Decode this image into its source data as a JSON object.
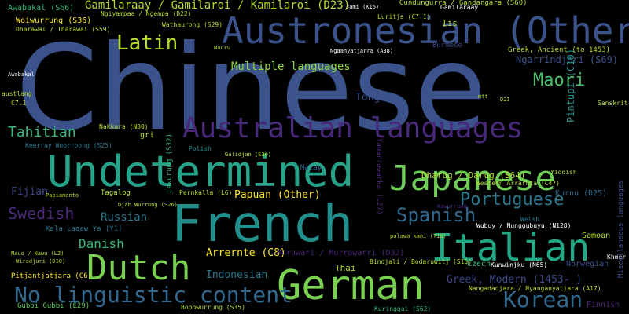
{
  "words": {
    "chinese": "Chinese",
    "austronesian": "Austronesian (Other)",
    "undetermined": "Undetermined",
    "french": "French",
    "german": "German",
    "dutch": "Dutch",
    "japanese": "Japanese",
    "italian": "Italian",
    "australian_languages": "Australian languages",
    "korean": "Korean",
    "no_linguistic_content": "No linguistic content",
    "spanish": "Spanish",
    "portuguese": "Portuguese",
    "latin": "Latin",
    "maori": "Maori",
    "tahitian": "Tahitian",
    "swedish": "Swedish",
    "danish": "Danish",
    "russian": "Russian",
    "fijian": "Fijian",
    "gamilaraay": "Gamilaraay / Gamilaroi / Kamilaroi (D23)",
    "multiple_languages": "Multiple languages",
    "tongan": "Tongan",
    "papuan": "Papuan (Other)",
    "arrernte": "Arrernte (C8)",
    "indonesian": "Indonesian",
    "greek_modern": "Greek, Modern (1453- )",
    "ngarrindjeri": "Ngarrindjeri (S69)",
    "pintupi": "Pintupi (C10)",
    "dharug": "Dharug / Darug (S64)",
    "kurnu": "Kurnu (D25)",
    "samoan": "Samoan",
    "norwegian": "Norwegian",
    "finnish": "Finnish",
    "thai": "Thai",
    "czech": "Czech",
    "kala_lagaw": "Kala Lagaw Ya (Y1)",
    "woiwurrung": "Woiwurrung (S36)",
    "awabakal": "Awabakal (S66)",
    "muruwari": "Muruwari / Murrawarri (D32)",
    "burmese": "Burmese",
    "greek_ancient": "Greek, Ancient (to 1453)",
    "sanskrit": "Sanskrit",
    "polish": "Polish",
    "malay": "Malay",
    "yiddish": "Yiddish",
    "welsh": "Welsh",
    "khmer": "Khmer",
    "iis": "Iis",
    "nauru": "Nauru",
    "pitjantjatjara": "Pitjantjatjara (C6)",
    "gubbi": "Gubbi Gubbi (E29)",
    "boonwurrung": "Boonwurrung (S35)",
    "kuringgai": "Kuringgai (S62)",
    "nangadadjara": "Nangadadjara / Nyanganyatjara (A17)",
    "luritja": "Luritja (C7.1)",
    "gundungurra": "Gundungurra / Gandangara (S60)",
    "ngiyampaa": "Ngiyampaa / Ngempa (D22)",
    "dharawal": "Dharawal / Tharawal (S59)",
    "wathaurong": "Wathaurong (S29)",
    "nakkara": "Nakkara (N80)",
    "gri": "gri",
    "gulidjan": "Gulidjan (S30)",
    "keerray": "Keerray Woorroong (S25)",
    "tagalog": "Tagalog",
    "papiamento": "Papiamento",
    "parnkalla": "Parnkalla (L6)",
    "djab": "Djab Wurrung (S26)",
    "bindjali": "Bindjali / Bodaruwitj (S15)",
    "palawa": "palawa kani (T16)",
    "kunwinjku": "Kunwinjku (N65)",
    "wubuy": "Wubuy / Nunggubuyu (N128)",
    "western_arrarnta": "Western Arrarnta (C47)",
    "nauo": "Nauo / Nawu (L2)",
    "wiradjuri": "Wiradjuri (D10)",
    "gamilaraay_short": "Gamilaraay",
    "ngaanyatjarra": "Ngaanyatjarra (A38)",
    "jami": "Jami (K16)",
    "austlang": "austlang",
    "c71": "C7.1",
    "mtt": "mtt",
    "d21": "D21",
    "lewurung": "Lewurung (S32)",
    "misc": "Miscellaneous languages",
    "wawur": "Wawurrung",
    "yawarrawarka": "Yawarrawarka (L27)",
    "awabakal_top": "Awabakal"
  }
}
